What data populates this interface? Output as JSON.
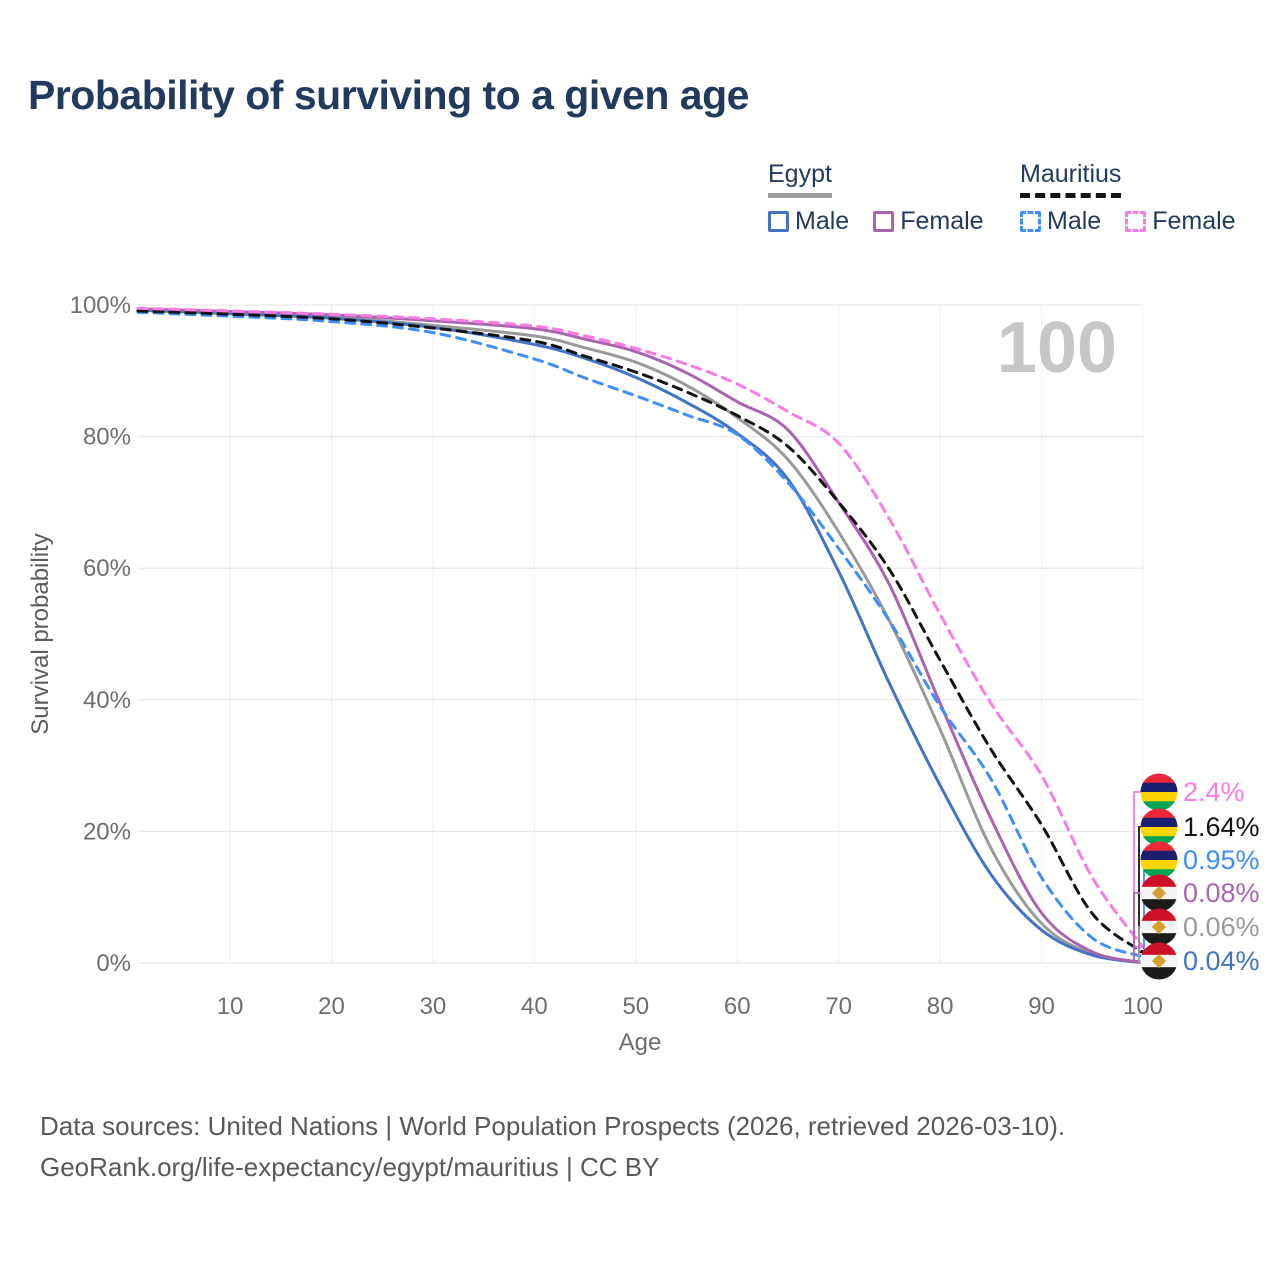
{
  "title": "Probability of surviving to a given age",
  "watermark": "100",
  "legend": {
    "groups": [
      {
        "country": "Egypt",
        "line_style": "solid",
        "underline_color": "#9e9e9e",
        "items": [
          {
            "label": "Male",
            "color": "#4472c4"
          },
          {
            "label": "Female",
            "color": "#aa64b0"
          }
        ]
      },
      {
        "country": "Mauritius",
        "line_style": "dashed",
        "underline_color": "#141414",
        "items": [
          {
            "label": "Male",
            "color": "#3f8efc"
          },
          {
            "label": "Female",
            "color": "#fa7be5"
          }
        ]
      }
    ]
  },
  "axes": {
    "x": {
      "label": "Age",
      "range": [
        0,
        100
      ],
      "ticks": [
        10,
        20,
        30,
        40,
        50,
        60,
        70,
        80,
        90,
        100
      ]
    },
    "y": {
      "label": "Survival probability",
      "range": [
        0,
        100
      ],
      "ticks": [
        {
          "value": 0,
          "label": "0%"
        },
        {
          "value": 20,
          "label": "20%"
        },
        {
          "value": 40,
          "label": "40%"
        },
        {
          "value": 60,
          "label": "60%"
        },
        {
          "value": 80,
          "label": "80%"
        },
        {
          "value": 100,
          "label": "100%"
        }
      ]
    }
  },
  "chart_data": {
    "type": "line",
    "title": "Probability of surviving to a given age",
    "xlabel": "Age",
    "ylabel": "Survival probability",
    "xlim": [
      0,
      100
    ],
    "ylim": [
      0,
      100
    ],
    "grid": true,
    "legend_position": "top-right",
    "x_ages": [
      0,
      10,
      20,
      30,
      40,
      45,
      50,
      55,
      60,
      65,
      70,
      75,
      80,
      85,
      90,
      95,
      100
    ],
    "series": [
      {
        "name": "Egypt",
        "country": "Egypt",
        "sex": "Both",
        "color": "#9a9a9a",
        "dashed": false,
        "values": [
          99.3,
          98.8,
          98.2,
          96.9,
          95.3,
          93.5,
          91.3,
          87.8,
          82.9,
          76.5,
          65.5,
          52.0,
          35.5,
          17.5,
          6.0,
          1.4,
          0.06
        ]
      },
      {
        "name": "Egypt Male",
        "country": "Egypt",
        "sex": "Male",
        "color": "#4472c4",
        "dashed": false,
        "values": [
          99.2,
          98.7,
          98.0,
          96.6,
          94.0,
          91.9,
          89.0,
          85.2,
          80.5,
          73.5,
          59.5,
          42.5,
          27.0,
          13.5,
          5.0,
          1.2,
          0.04
        ]
      },
      {
        "name": "Egypt Female",
        "country": "Egypt",
        "sex": "Female",
        "color": "#aa64b0",
        "dashed": false,
        "values": [
          99.4,
          99.0,
          98.5,
          97.6,
          96.4,
          94.8,
          92.9,
          89.7,
          85.3,
          81.0,
          70.0,
          57.5,
          39.5,
          22.0,
          7.6,
          1.7,
          0.08
        ]
      },
      {
        "name": "Mauritius Male",
        "country": "Mauritius",
        "sex": "Male",
        "color": "#3f8efc",
        "dashed": true,
        "values": [
          98.9,
          98.3,
          97.5,
          95.8,
          91.8,
          88.9,
          86.2,
          83.3,
          80.3,
          73.0,
          63.0,
          52.0,
          39.0,
          28.0,
          13.0,
          3.8,
          0.95
        ]
      },
      {
        "name": "Mauritius",
        "country": "Mauritius",
        "sex": "Both",
        "color": "#141414",
        "dashed": true,
        "values": [
          99.1,
          98.6,
          97.9,
          96.5,
          94.5,
          92.2,
          89.8,
          86.8,
          83.2,
          78.5,
          70.0,
          59.8,
          46.0,
          32.5,
          21.0,
          7.5,
          1.64
        ]
      },
      {
        "name": "Mauritius Female",
        "country": "Mauritius",
        "sex": "Female",
        "color": "#fa7be5",
        "dashed": true,
        "values": [
          99.5,
          99.1,
          98.6,
          97.9,
          96.8,
          95.3,
          93.4,
          91.0,
          88.0,
          83.8,
          79.0,
          67.5,
          53.0,
          39.5,
          28.5,
          13.0,
          2.4
        ]
      }
    ],
    "end_labels": [
      {
        "flag": "mauritius",
        "text": "2.4%",
        "color": "#fa7be5",
        "series": "Mauritius Female"
      },
      {
        "flag": "mauritius",
        "text": "1.64%",
        "color": "#141414",
        "series": "Mauritius"
      },
      {
        "flag": "mauritius",
        "text": "0.95%",
        "color": "#3f8efc",
        "series": "Mauritius Male"
      },
      {
        "flag": "egypt",
        "text": "0.08%",
        "color": "#aa64b0",
        "series": "Egypt Female"
      },
      {
        "flag": "egypt",
        "text": "0.06%",
        "color": "#9a9a9a",
        "series": "Egypt"
      },
      {
        "flag": "egypt",
        "text": "0.04%",
        "color": "#4472c4",
        "series": "Egypt Male"
      }
    ]
  },
  "footer": {
    "line1": "Data sources: United Nations | World Population Prospects (2026, retrieved 2026-03-10).",
    "line2": "GeoRank.org/life-expectancy/egypt/mauritius | CC BY"
  }
}
